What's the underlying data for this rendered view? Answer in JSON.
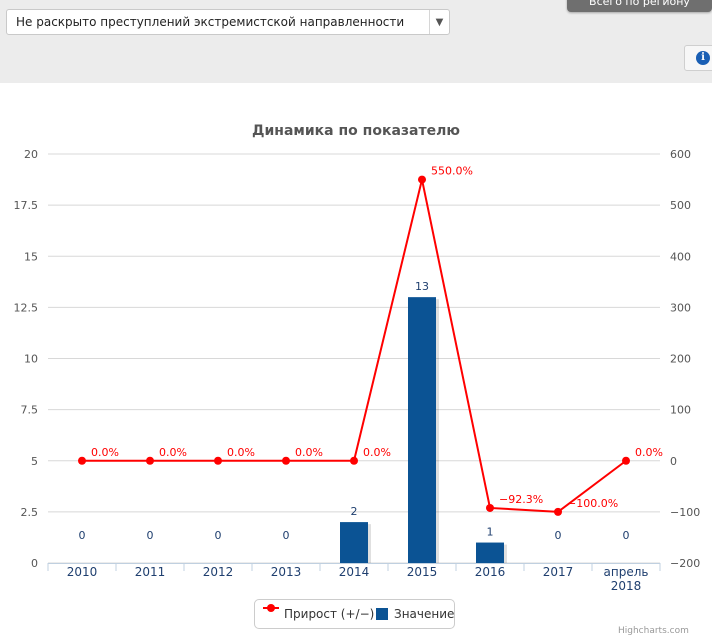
{
  "header": {
    "filter_select": {
      "value": "Не раскрыто преступлений экстремистской направленности",
      "arrow_icon": "triangle-down-icon"
    },
    "region_tab_label": "Всего по региону",
    "info_icon": "info-icon"
  },
  "chart_data": {
    "type": "bar+line",
    "title": "Динамика по показателю",
    "categories": [
      "2010",
      "2011",
      "2012",
      "2013",
      "2014",
      "2015",
      "2016",
      "2017",
      "апрель 2018"
    ],
    "y_left": {
      "ticks": [
        "0",
        "2.5",
        "5",
        "7.5",
        "10",
        "12.5",
        "15",
        "17.5",
        "20"
      ],
      "range": [
        0,
        20
      ]
    },
    "y_right": {
      "ticks": [
        "−200",
        "−100",
        "0",
        "100",
        "200",
        "300",
        "400",
        "500",
        "600"
      ],
      "range": [
        -200,
        600
      ]
    },
    "grid": true,
    "legend_position": "bottom-center",
    "series": [
      {
        "name": "Прирост (+/−)",
        "kind": "line",
        "axis": "right",
        "color": "#ff0000",
        "values": [
          0,
          0,
          0,
          0,
          0,
          550,
          -92.3,
          -100,
          0
        ],
        "labels": [
          "0.0%",
          "0.0%",
          "0.0%",
          "0.0%",
          "0.0%",
          "550.0%",
          "−92.3%",
          "−100.0%",
          "0.0%"
        ]
      },
      {
        "name": "Значение",
        "kind": "bar",
        "axis": "left",
        "color": "#0b5394",
        "values": [
          0,
          0,
          0,
          0,
          2,
          13,
          1,
          0,
          0
        ],
        "labels": [
          "0",
          "0",
          "0",
          "0",
          "2",
          "13",
          "1",
          "0",
          "0"
        ]
      }
    ]
  },
  "credit": "Highcharts.com"
}
